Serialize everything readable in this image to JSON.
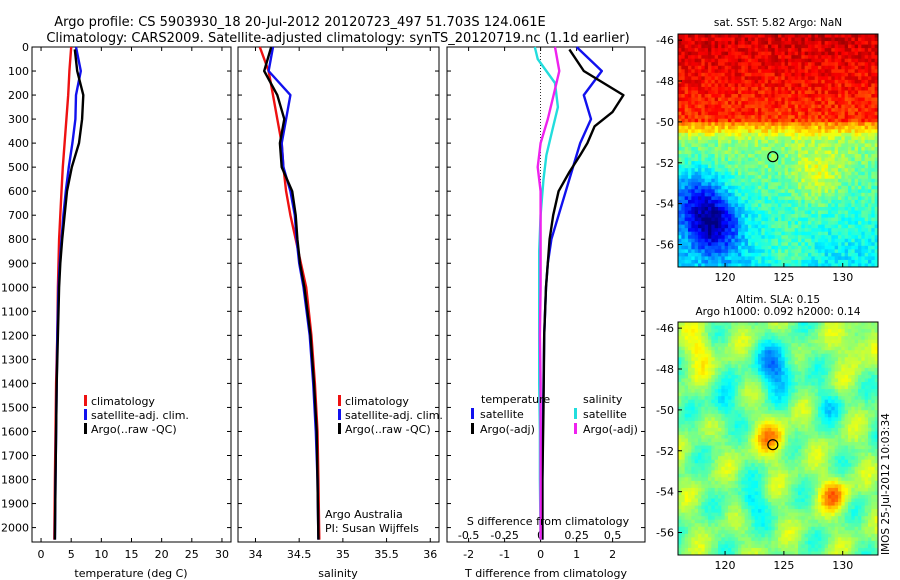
{
  "header": {
    "title_line1": "Argo profile: CS 5903930_18 20-Jul-2012 20120723_497 51.703S 124.061E",
    "title_line2": "Climatology: CARS2009. Satellite-adjusted climatology: synTS_20120719.nc (1.1d earlier)"
  },
  "colors": {
    "climatology": "#ee1111",
    "satellite": "#1111ee",
    "argo": "#000000",
    "sat_diff": "#22dddd",
    "argo_diff": "#ee22ee"
  },
  "depth_ticks": [
    "0",
    "100",
    "200",
    "300",
    "400",
    "500",
    "600",
    "700",
    "800",
    "900",
    "1000",
    "1100",
    "1200",
    "1300",
    "1400",
    "1500",
    "1600",
    "1700",
    "1800",
    "1900",
    "2000"
  ],
  "chart_data": [
    {
      "type": "line",
      "name": "temperature-profile",
      "xlabel": "temperature (deg C)",
      "xlim": [
        -1.5,
        31.5
      ],
      "ylim": [
        2060,
        0
      ],
      "x_ticks": [
        "0",
        "5",
        "10",
        "15",
        "20",
        "25",
        "30"
      ],
      "x_tick_values": [
        0,
        5,
        10,
        15,
        20,
        25,
        30
      ],
      "legend": [
        "climatology",
        "satellite-adj. clim.",
        "Argo(..raw -QC)"
      ],
      "series": [
        {
          "name": "climatology",
          "color": "#ee1111",
          "points": [
            [
              5.0,
              0
            ],
            [
              4.7,
              100
            ],
            [
              4.5,
              200
            ],
            [
              4.2,
              300
            ],
            [
              3.9,
              400
            ],
            [
              3.6,
              500
            ],
            [
              3.4,
              600
            ],
            [
              3.2,
              700
            ],
            [
              3.0,
              800
            ],
            [
              2.9,
              900
            ],
            [
              2.8,
              1000
            ],
            [
              2.7,
              1200
            ],
            [
              2.5,
              1400
            ],
            [
              2.4,
              1600
            ],
            [
              2.3,
              1800
            ],
            [
              2.2,
              2050
            ]
          ]
        },
        {
          "name": "satellite-adj. clim.",
          "color": "#1111ee",
          "points": [
            [
              5.8,
              0
            ],
            [
              6.6,
              100
            ],
            [
              5.8,
              200
            ],
            [
              5.7,
              300
            ],
            [
              5.2,
              400
            ],
            [
              4.6,
              500
            ],
            [
              4.1,
              600
            ],
            [
              3.7,
              700
            ],
            [
              3.4,
              800
            ],
            [
              3.1,
              900
            ],
            [
              2.9,
              1000
            ],
            [
              2.7,
              1200
            ],
            [
              2.6,
              1400
            ],
            [
              2.5,
              1600
            ],
            [
              2.4,
              1800
            ],
            [
              2.3,
              2050
            ]
          ]
        },
        {
          "name": "Argo(..raw -QC)",
          "color": "#000000",
          "points": [
            [
              5.6,
              10
            ],
            [
              6.0,
              100
            ],
            [
              7.0,
              200
            ],
            [
              6.8,
              300
            ],
            [
              6.3,
              400
            ],
            [
              5.1,
              500
            ],
            [
              4.3,
              600
            ],
            [
              3.9,
              700
            ],
            [
              3.5,
              800
            ],
            [
              3.2,
              900
            ],
            [
              3.0,
              1000
            ],
            [
              2.8,
              1200
            ],
            [
              2.6,
              1400
            ],
            [
              2.5,
              1600
            ],
            [
              2.4,
              1800
            ],
            [
              2.3,
              2050
            ]
          ]
        }
      ]
    },
    {
      "type": "line",
      "name": "salinity-profile",
      "xlabel": "salinity",
      "xlim": [
        33.8,
        36.1
      ],
      "ylim": [
        2060,
        0
      ],
      "x_ticks": [
        "34",
        "34.5",
        "35",
        "35.5",
        "36"
      ],
      "x_tick_values": [
        34,
        34.5,
        35,
        35.5,
        36
      ],
      "legend": [
        "climatology",
        "satellite-adj. clim.",
        "Argo(..raw -QC)"
      ],
      "annotation": [
        "Argo Australia",
        "PI: Susan Wijffels"
      ],
      "series": [
        {
          "name": "climatology",
          "color": "#ee1111",
          "points": [
            [
              34.05,
              0
            ],
            [
              34.15,
              100
            ],
            [
              34.2,
              200
            ],
            [
              34.25,
              300
            ],
            [
              34.3,
              400
            ],
            [
              34.32,
              500
            ],
            [
              34.35,
              600
            ],
            [
              34.4,
              700
            ],
            [
              34.46,
              800
            ],
            [
              34.52,
              900
            ],
            [
              34.58,
              1000
            ],
            [
              34.64,
              1200
            ],
            [
              34.68,
              1400
            ],
            [
              34.71,
              1600
            ],
            [
              34.72,
              1800
            ],
            [
              34.73,
              2050
            ]
          ]
        },
        {
          "name": "satellite-adj. clim.",
          "color": "#1111ee",
          "points": [
            [
              34.2,
              0
            ],
            [
              34.15,
              100
            ],
            [
              34.4,
              200
            ],
            [
              34.35,
              300
            ],
            [
              34.3,
              400
            ],
            [
              34.32,
              500
            ],
            [
              34.4,
              600
            ],
            [
              34.45,
              700
            ],
            [
              34.47,
              800
            ],
            [
              34.5,
              900
            ],
            [
              34.55,
              1000
            ],
            [
              34.62,
              1200
            ],
            [
              34.66,
              1400
            ],
            [
              34.69,
              1600
            ],
            [
              34.71,
              1800
            ],
            [
              34.72,
              2050
            ]
          ]
        },
        {
          "name": "Argo(..raw -QC)",
          "color": "#000000",
          "points": [
            [
              34.18,
              0
            ],
            [
              34.1,
              100
            ],
            [
              34.25,
              200
            ],
            [
              34.33,
              300
            ],
            [
              34.28,
              400
            ],
            [
              34.3,
              500
            ],
            [
              34.42,
              600
            ],
            [
              34.46,
              700
            ],
            [
              34.48,
              800
            ],
            [
              34.51,
              900
            ],
            [
              34.56,
              1000
            ],
            [
              34.63,
              1200
            ],
            [
              34.67,
              1400
            ],
            [
              34.7,
              1600
            ],
            [
              34.71,
              1800
            ],
            [
              34.72,
              2050
            ]
          ]
        }
      ]
    },
    {
      "type": "line",
      "name": "difference-profile",
      "xlabel": "T difference from climatology",
      "xlim": [
        -2.6,
        2.9
      ],
      "ylim": [
        2060,
        0
      ],
      "x_ticks": [
        "-2",
        "-1",
        "0",
        "1",
        "2"
      ],
      "x_tick_values": [
        -2,
        -1,
        0,
        1,
        2
      ],
      "secondary_axis": {
        "label": "S difference from climatology",
        "ticks": [
          "-0.5",
          "-0.25",
          "0",
          "0.25",
          "0.5"
        ],
        "tick_values": [
          -0.5,
          -0.25,
          0,
          0.25,
          0.5
        ],
        "xlim": [
          -0.65,
          0.725
        ]
      },
      "legend_temperature": {
        "title": "temperature",
        "items": [
          "satellite",
          "Argo(-adj)"
        ]
      },
      "legend_salinity": {
        "title": "salinity",
        "items": [
          "satellite",
          "Argo(-adj)"
        ]
      },
      "series": [
        {
          "name": "temperature satellite",
          "color": "#1111ee",
          "points": [
            [
              1.0,
              0
            ],
            [
              1.7,
              100
            ],
            [
              1.2,
              200
            ],
            [
              1.4,
              300
            ],
            [
              1.1,
              400
            ],
            [
              0.9,
              500
            ],
            [
              0.7,
              600
            ],
            [
              0.5,
              700
            ],
            [
              0.3,
              800
            ],
            [
              0.2,
              900
            ],
            [
              0.15,
              1000
            ],
            [
              0.1,
              1200
            ],
            [
              0.08,
              1400
            ],
            [
              0.06,
              1600
            ],
            [
              0.05,
              1800
            ],
            [
              0.05,
              2050
            ]
          ]
        },
        {
          "name": "temperature Argo(-adj)",
          "color": "#000000",
          "points": [
            [
              0.8,
              10
            ],
            [
              1.2,
              100
            ],
            [
              2.3,
              200
            ],
            [
              2.0,
              270
            ],
            [
              1.5,
              330
            ],
            [
              1.3,
              400
            ],
            [
              1.1,
              450
            ],
            [
              0.8,
              520
            ],
            [
              0.5,
              600
            ],
            [
              0.35,
              700
            ],
            [
              0.25,
              800
            ],
            [
              0.2,
              900
            ],
            [
              0.15,
              1000
            ],
            [
              0.1,
              1200
            ],
            [
              0.08,
              1500
            ],
            [
              0.05,
              1800
            ],
            [
              0.05,
              2050
            ]
          ]
        },
        {
          "name": "salinity satellite",
          "color": "#22dddd",
          "points": [
            [
              -0.04,
              0
            ],
            [
              -0.02,
              50
            ],
            [
              0.1,
              150
            ],
            [
              0.12,
              250
            ],
            [
              0.08,
              350
            ],
            [
              0.04,
              450
            ],
            [
              0.02,
              550
            ],
            [
              0.0,
              700
            ],
            [
              -0.01,
              850
            ],
            [
              -0.01,
              1000
            ],
            [
              -0.01,
              1200
            ],
            [
              -0.01,
              1400
            ],
            [
              -0.005,
              1600
            ],
            [
              -0.005,
              1800
            ],
            [
              0.0,
              2050
            ]
          ]
        },
        {
          "name": "salinity Argo(-adj)",
          "color": "#ee22ee",
          "points": [
            [
              0.1,
              0
            ],
            [
              0.13,
              100
            ],
            [
              0.09,
              200
            ],
            [
              0.05,
              300
            ],
            [
              0.0,
              400
            ],
            [
              -0.02,
              500
            ],
            [
              0.0,
              600
            ],
            [
              0.0,
              700
            ],
            [
              0.0,
              800
            ],
            [
              0.0,
              900
            ],
            [
              0.0,
              1000
            ],
            [
              -0.005,
              1200
            ],
            [
              0.0,
              1400
            ],
            [
              0.0,
              1600
            ],
            [
              0.0,
              1800
            ],
            [
              0.0,
              2050
            ]
          ]
        }
      ]
    },
    {
      "type": "heatmap",
      "name": "sst-map",
      "title": "sat. SST: 5.82 Argo: NaN",
      "xlim": [
        116,
        133
      ],
      "ylim": [
        -57.1,
        -45.7
      ],
      "x_ticks": [
        "120",
        "125",
        "130"
      ],
      "x_tick_values": [
        120,
        125,
        130
      ],
      "y_ticks": [
        "-46",
        "-48",
        "-50",
        "-52",
        "-54",
        "-56"
      ],
      "y_tick_values": [
        -46,
        -48,
        -50,
        -52,
        -54,
        -56
      ],
      "marker": {
        "lon": 124.061,
        "lat": -51.703
      }
    },
    {
      "type": "heatmap",
      "name": "sla-map",
      "title_line1": "Altim. SLA: 0.15",
      "title_line2": "Argo h1000: 0.092 h2000: 0.14",
      "xlim": [
        116,
        133
      ],
      "ylim": [
        -57.1,
        -45.7
      ],
      "x_ticks": [
        "120",
        "125",
        "130"
      ],
      "x_tick_values": [
        120,
        125,
        130
      ],
      "y_ticks": [
        "-46",
        "-48",
        "-50",
        "-52",
        "-54",
        "-56"
      ],
      "y_tick_values": [
        -46,
        -48,
        -50,
        -52,
        -54,
        -56
      ],
      "marker": {
        "lon": 124.061,
        "lat": -51.703
      }
    }
  ],
  "stamp": "IMOS 25-Jul-2012 10:03:34"
}
